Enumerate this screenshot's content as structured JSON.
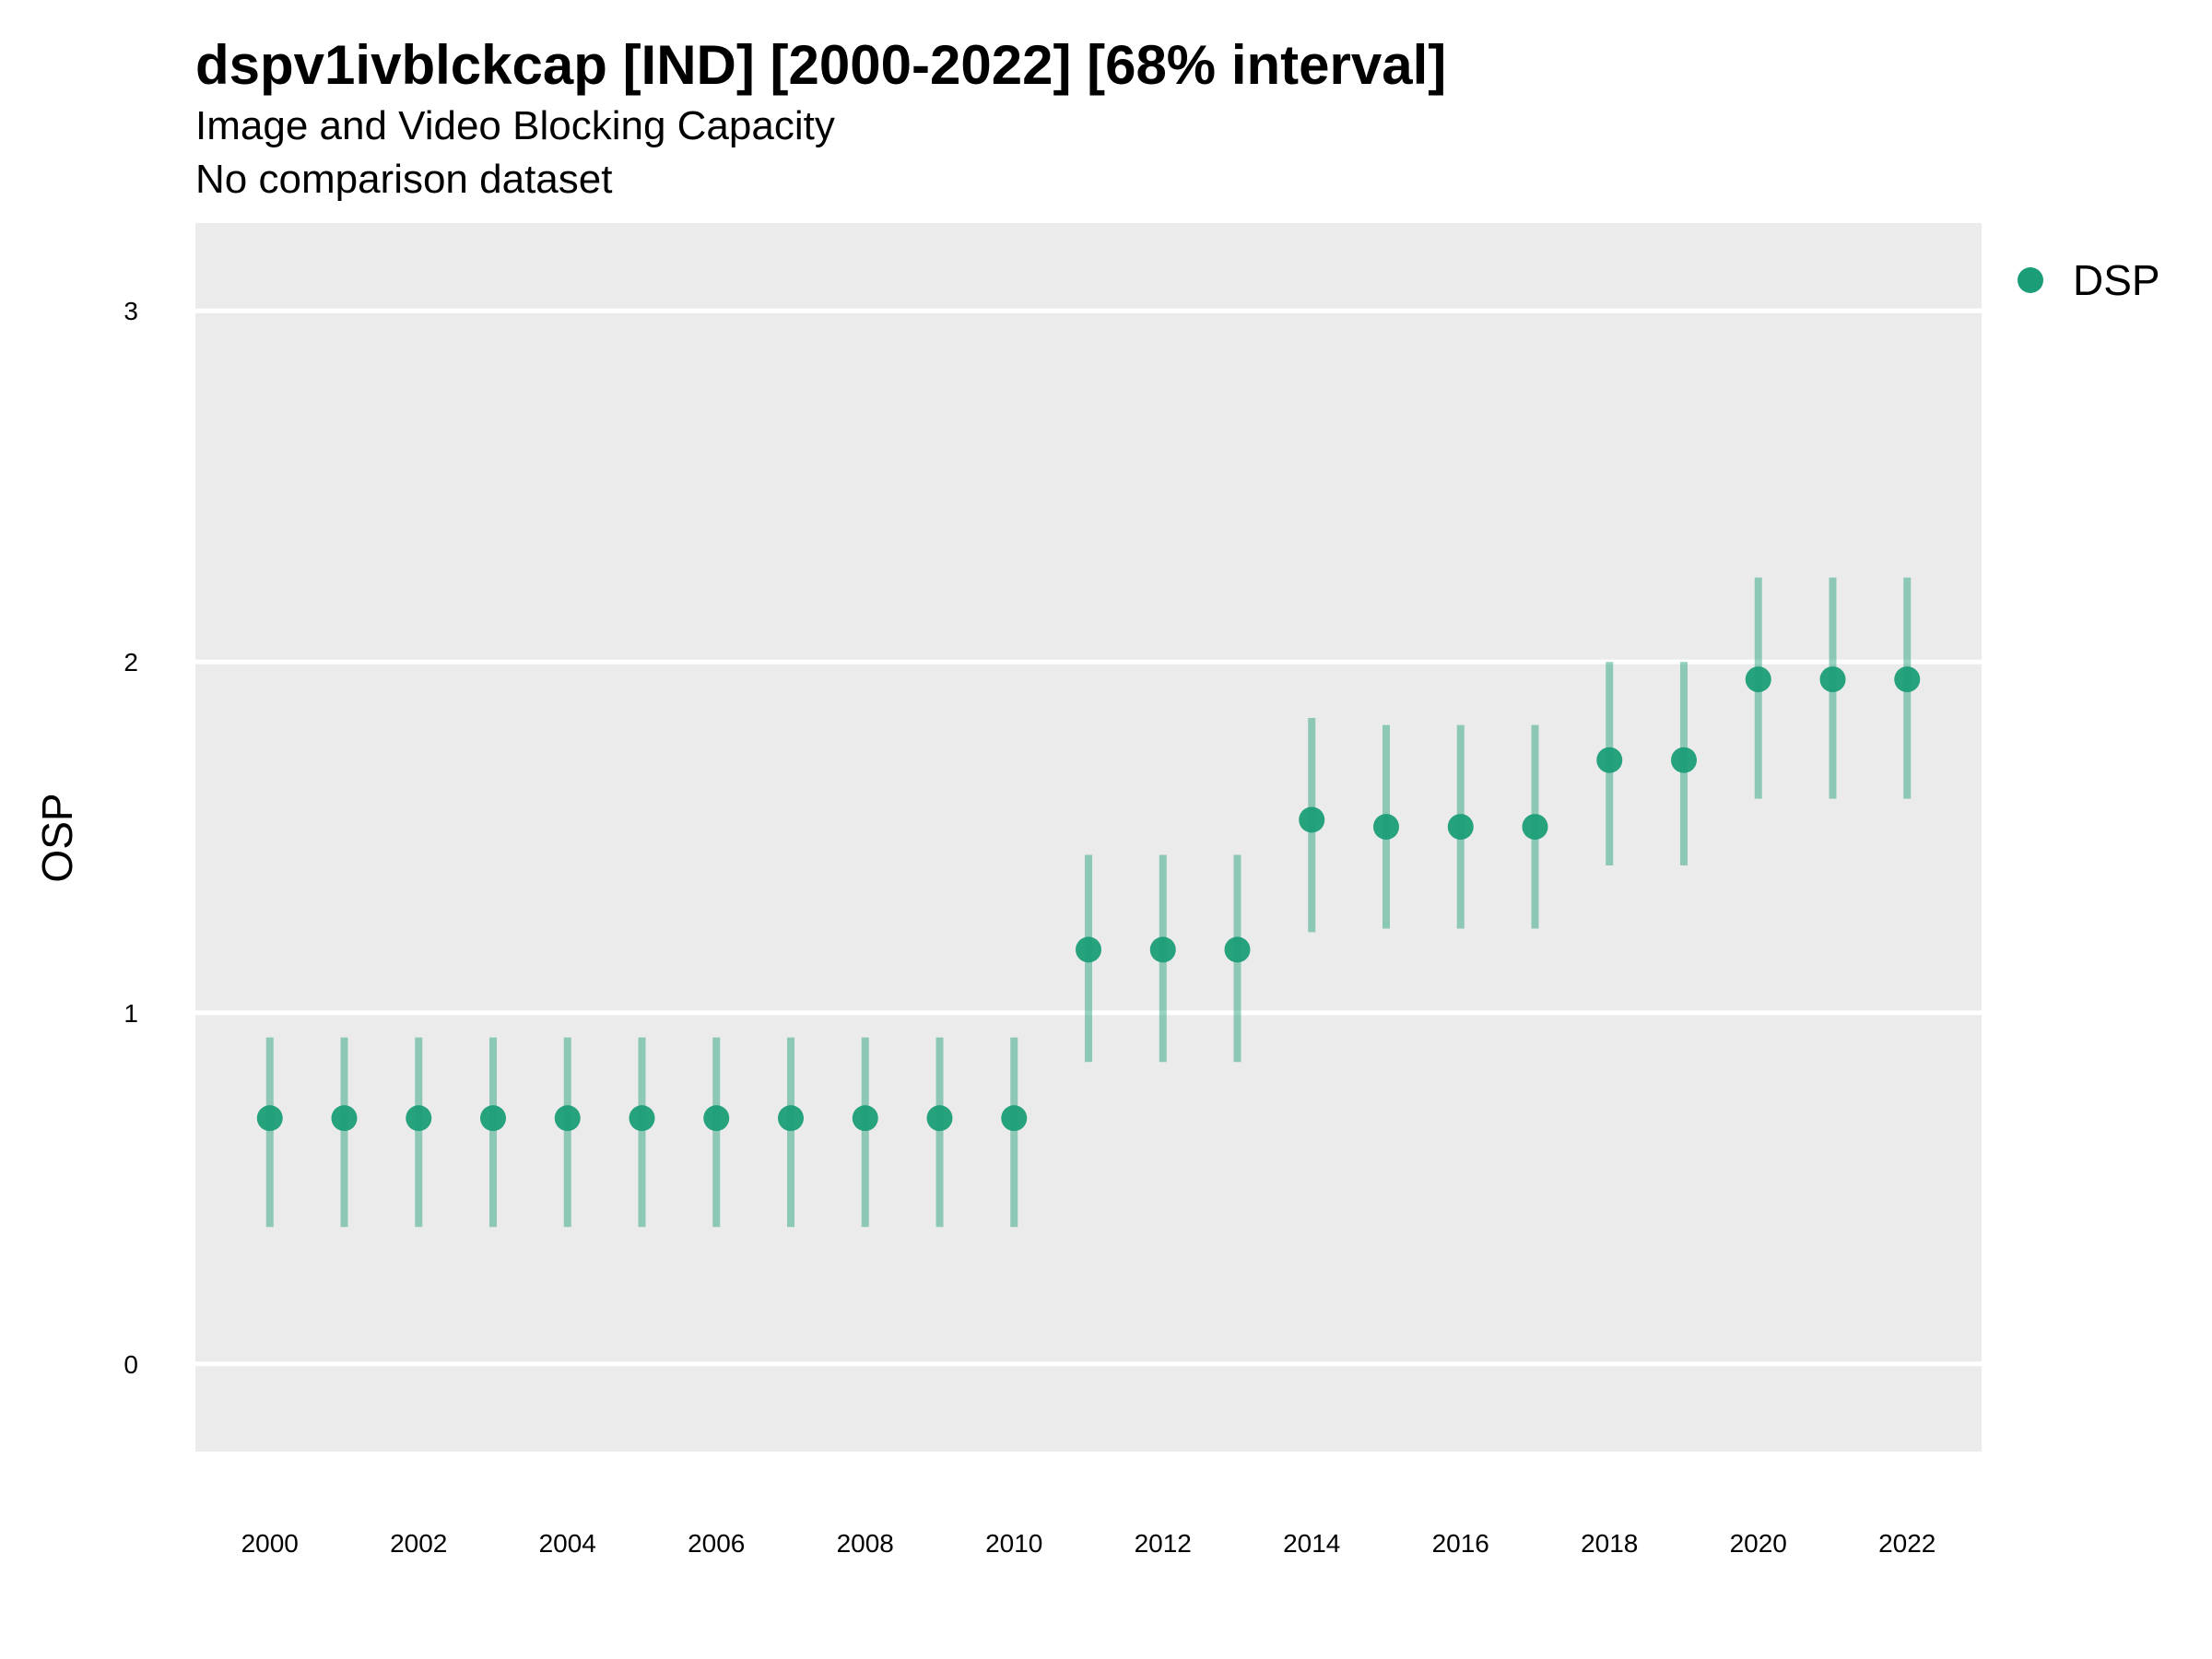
{
  "chart_data": {
    "type": "scatter",
    "title": "dspv1ivblckcap [IND] [2000-2022] [68% interval]",
    "subtitle": "Image and Video Blocking Capacity",
    "caption_line": "No comparison dataset",
    "xlabel": "",
    "ylabel": "OSP",
    "xlim": [
      1999.0,
      2023.0
    ],
    "ylim": [
      -0.25,
      3.25
    ],
    "x_ticks": [
      "2000",
      "2002",
      "2004",
      "2006",
      "2008",
      "2010",
      "2012",
      "2014",
      "2016",
      "2018",
      "2020",
      "2022"
    ],
    "y_ticks": [
      "0",
      "1",
      "2",
      "3"
    ],
    "grid": true,
    "legend_position": "right-top",
    "series": [
      {
        "name": "DSP",
        "color": "#1b9e77",
        "x": [
          2000,
          2001,
          2002,
          2003,
          2004,
          2005,
          2006,
          2007,
          2008,
          2009,
          2010,
          2011,
          2012,
          2013,
          2014,
          2015,
          2016,
          2017,
          2018,
          2019,
          2020,
          2021,
          2022
        ],
        "y": [
          0.7,
          0.7,
          0.7,
          0.7,
          0.7,
          0.7,
          0.7,
          0.7,
          0.7,
          0.7,
          0.7,
          1.18,
          1.18,
          1.18,
          1.55,
          1.53,
          1.53,
          1.53,
          1.72,
          1.72,
          1.95,
          1.95,
          1.95
        ],
        "lower": [
          0.39,
          0.39,
          0.39,
          0.39,
          0.39,
          0.39,
          0.39,
          0.39,
          0.39,
          0.39,
          0.39,
          0.86,
          0.86,
          0.86,
          1.23,
          1.24,
          1.24,
          1.24,
          1.42,
          1.42,
          1.61,
          1.61,
          1.61
        ],
        "upper": [
          0.93,
          0.93,
          0.93,
          0.93,
          0.93,
          0.93,
          0.93,
          0.93,
          0.93,
          0.93,
          0.93,
          1.45,
          1.45,
          1.45,
          1.84,
          1.82,
          1.82,
          1.82,
          2.0,
          2.0,
          2.24,
          2.24,
          2.24
        ]
      }
    ]
  }
}
